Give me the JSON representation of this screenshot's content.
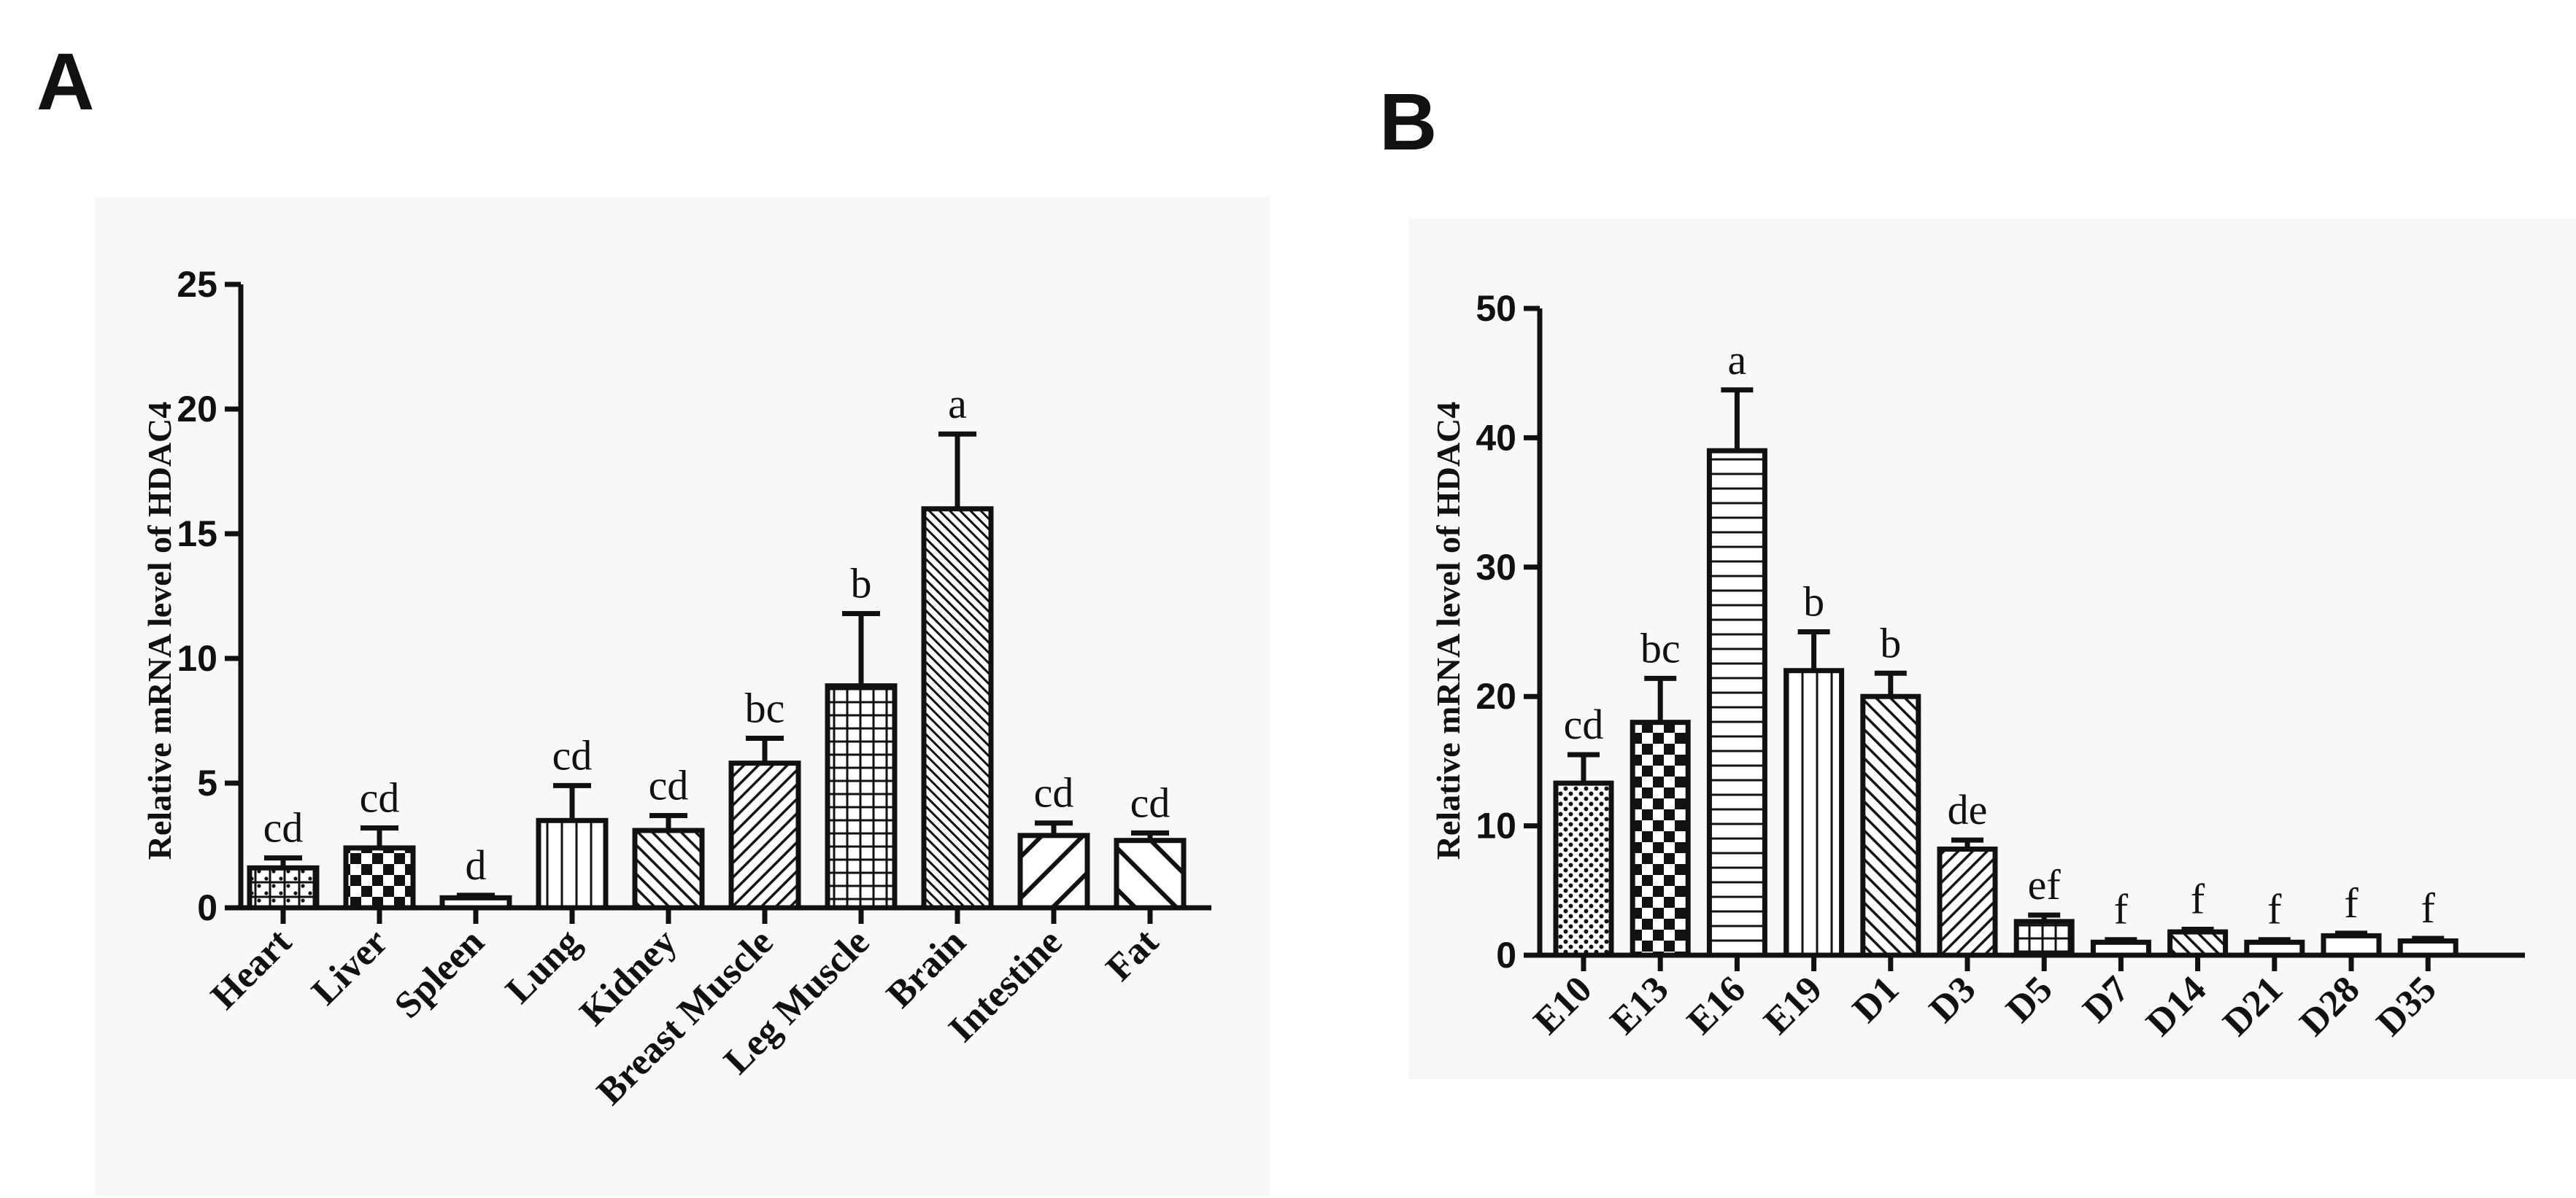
{
  "chart_data": [
    {
      "panel": "A",
      "type": "bar",
      "title": "",
      "xlabel": "",
      "ylabel": "Relative mRNA level of HDAC4",
      "ylim": [
        0,
        25
      ],
      "yticks": [
        "0",
        "5",
        "10",
        "15",
        "20",
        "25"
      ],
      "categories": [
        "Heart",
        "Liver",
        "Spleen",
        "Lung",
        "Kidney",
        "Breast Muscle",
        "Leg Muscle",
        "Brain",
        "Intestine",
        "Fat"
      ],
      "values": [
        1.6,
        2.4,
        0.4,
        3.5,
        3.1,
        5.8,
        8.9,
        16.0,
        2.9,
        2.7
      ],
      "errors": [
        0.4,
        0.8,
        0.1,
        1.4,
        0.6,
        1.0,
        2.9,
        3.0,
        0.5,
        0.3
      ],
      "letters": [
        "cd",
        "cd",
        "d",
        "cd",
        "cd",
        "bc",
        "b",
        "a",
        "cd",
        "cd"
      ],
      "patterns": [
        "grid-dots",
        "checker",
        "plain",
        "vertical",
        "diagonal-right",
        "diagonal-left",
        "grid",
        "diagonal-fine",
        "diagonal-left-wide",
        "diagonal-right-wide"
      ]
    },
    {
      "panel": "B",
      "type": "bar",
      "title": "",
      "xlabel": "",
      "ylabel": "Relative mRNA level of HDAC4",
      "ylim": [
        0,
        50
      ],
      "yticks": [
        "0",
        "10",
        "20",
        "30",
        "40",
        "50"
      ],
      "categories": [
        "E10",
        "E13",
        "E16",
        "E19",
        "D1",
        "D3",
        "D5",
        "D7",
        "D14",
        "D21",
        "D28",
        "D35"
      ],
      "values": [
        13.3,
        18.0,
        39.0,
        22.0,
        20.0,
        8.2,
        2.6,
        1.0,
        1.8,
        1.0,
        1.5,
        1.1
      ],
      "errors": [
        2.2,
        3.4,
        4.7,
        3.0,
        1.8,
        0.7,
        0.5,
        0.2,
        0.2,
        0.2,
        0.2,
        0.2
      ],
      "letters": [
        "cd",
        "bc",
        "a",
        "b",
        "b",
        "de",
        "ef",
        "f",
        "f",
        "f",
        "f",
        "f"
      ],
      "patterns": [
        "dots",
        "checker",
        "horizontal",
        "vertical",
        "diagonal-right",
        "diagonal-left",
        "grid",
        "plain",
        "diagonal-right",
        "plain",
        "plain",
        "plain"
      ]
    }
  ]
}
